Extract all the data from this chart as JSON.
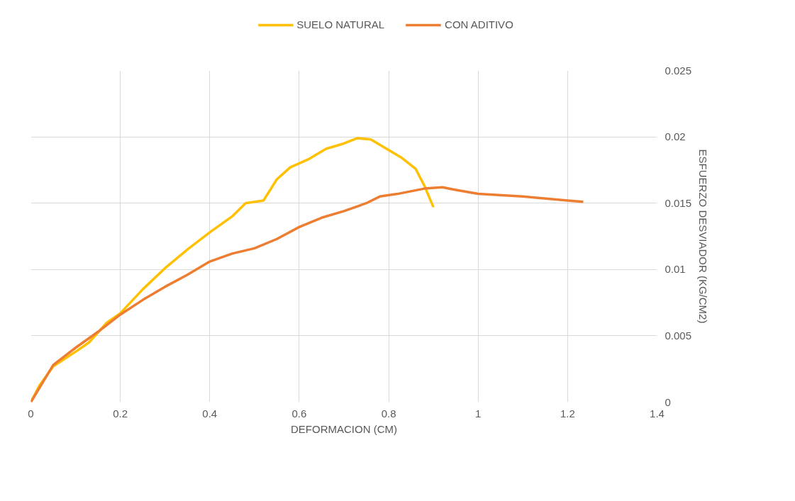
{
  "chart_data": {
    "type": "line",
    "xlabel": "DEFORMACION (CM)",
    "ylabel": "ESFUERZO DESVIADOR (KG/CM2)",
    "xlim": [
      0,
      1.4
    ],
    "xticks": [
      0,
      0.2,
      0.4,
      0.6,
      0.8,
      1,
      1.2,
      1.4
    ],
    "ylim": [
      0,
      0.025
    ],
    "yticks": [
      0,
      0.005,
      0.01,
      0.015,
      0.02,
      0.025
    ],
    "grid": true,
    "legend": "top",
    "marker": "none",
    "line_style": "solid",
    "series": [
      {
        "name": "SUELO NATURAL",
        "color": "#ffc000",
        "x": [
          0,
          0.02,
          0.05,
          0.1,
          0.13,
          0.17,
          0.2,
          0.25,
          0.3,
          0.35,
          0.4,
          0.45,
          0.48,
          0.52,
          0.55,
          0.58,
          0.62,
          0.66,
          0.7,
          0.73,
          0.76,
          0.8,
          0.83,
          0.86,
          0.88,
          0.9
        ],
        "values": [
          0,
          0.0013,
          0.0027,
          0.0038,
          0.0045,
          0.006,
          0.0067,
          0.0085,
          0.0101,
          0.0115,
          0.0128,
          0.014,
          0.015,
          0.0152,
          0.0168,
          0.0177,
          0.0183,
          0.0191,
          0.0195,
          0.0199,
          0.0198,
          0.019,
          0.0184,
          0.0176,
          0.0163,
          0.0147
        ]
      },
      {
        "name": "CON ADITIVO",
        "color": "#ed7d31",
        "x": [
          0,
          0.05,
          0.1,
          0.15,
          0.2,
          0.25,
          0.3,
          0.35,
          0.4,
          0.45,
          0.5,
          0.55,
          0.6,
          0.65,
          0.7,
          0.75,
          0.78,
          0.82,
          0.88,
          0.92,
          0.95,
          1.0,
          1.1,
          1.2,
          1.235
        ],
        "values": [
          0,
          0.0028,
          0.0041,
          0.0053,
          0.0066,
          0.0077,
          0.0087,
          0.0096,
          0.0106,
          0.0112,
          0.0116,
          0.0123,
          0.0132,
          0.0139,
          0.0144,
          0.015,
          0.0155,
          0.0157,
          0.0161,
          0.0162,
          0.016,
          0.0157,
          0.0155,
          0.0152,
          0.0151
        ]
      }
    ]
  }
}
